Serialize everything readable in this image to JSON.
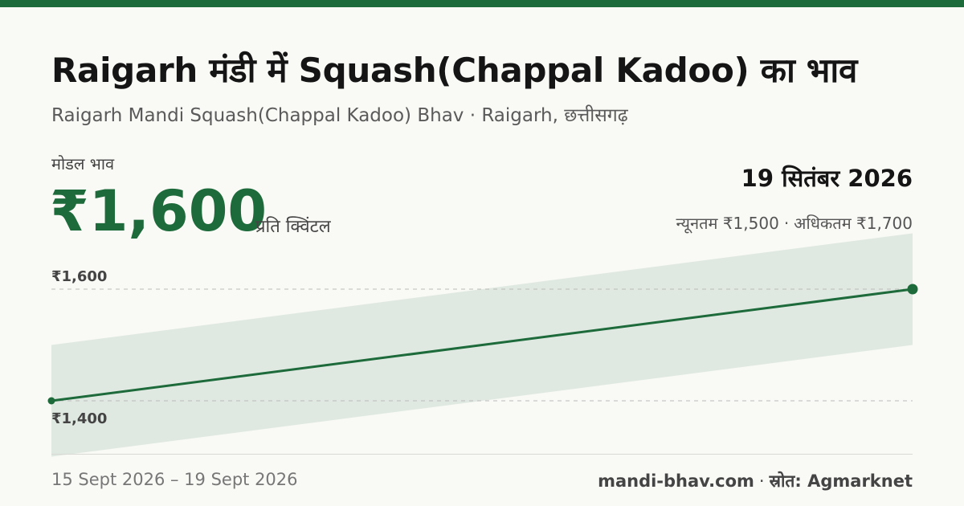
{
  "header": {
    "title": "Raigarh मंडी में Squash(Chappal Kadoo) का भाव",
    "subtitle": "Raigarh Mandi Squash(Chappal Kadoo) Bhav · Raigarh, छत्तीसगढ़"
  },
  "summary": {
    "modal_label": "मोडल भाव",
    "price": "₹1,600",
    "unit": "प्रति क्विंटल",
    "date": "19 सितंबर 2026",
    "min_text": "न्यूनतम ₹1,500",
    "separator": "·",
    "max_text": "अधिकतम ₹1,700"
  },
  "chart_data": {
    "type": "line",
    "x": [
      "15 Sept 2026",
      "19 Sept 2026"
    ],
    "series": [
      {
        "values": [
          1400,
          1600
        ]
      }
    ],
    "band": {
      "min": [
        1300,
        1500
      ],
      "max": [
        1500,
        1700
      ]
    },
    "y_ticks": [
      1400,
      1600
    ],
    "y_tick_labels": [
      "₹1,400",
      "₹1,600"
    ],
    "ylim": [
      1300,
      1700
    ],
    "colors": {
      "line": "#1d6a3a",
      "band": "#dfe9e1",
      "grid": "#bcbcbc"
    }
  },
  "footer": {
    "date_range": "15 Sept 2026 – 19 Sept 2026",
    "site": "mandi-bhav.com",
    "separator": "·",
    "source": "स्रोत: Agmarknet"
  }
}
